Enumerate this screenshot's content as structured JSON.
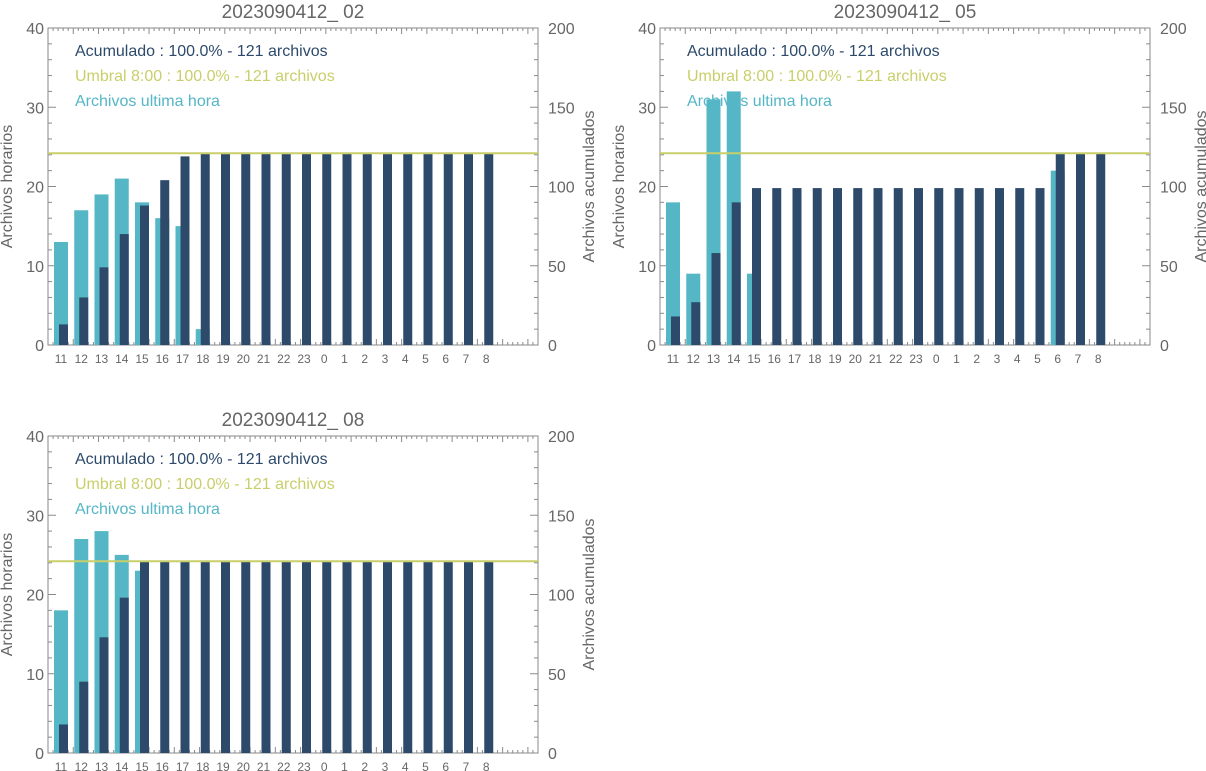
{
  "colors": {
    "hourly": "#55b6c6",
    "cumulative": "#2d4a6b",
    "threshold": "#c8cf6a",
    "axis": "#8a8a8a",
    "text": "#666666"
  },
  "common": {
    "ylabel_left": "Archivos horarios",
    "ylabel_right": "Archivos acumulados",
    "y_left_ticks": [
      "0",
      "10",
      "20",
      "30",
      "40"
    ],
    "y_right_ticks": [
      "0",
      "50",
      "100",
      "150",
      "200"
    ],
    "legend": [
      "Acumulado : 100.0% - 121 archivos",
      "Umbral 8:00 : 100.0% - 121 archivos",
      "Archivos ultima hora"
    ]
  },
  "chart_data": [
    {
      "type": "bar",
      "title": "2023090412_ 02",
      "categories": [
        "11",
        "12",
        "13",
        "14",
        "15",
        "16",
        "17",
        "18",
        "19",
        "20",
        "21",
        "22",
        "23",
        "0",
        "1",
        "2",
        "3",
        "4",
        "5",
        "6",
        "7",
        "8"
      ],
      "ylim_left": [
        0,
        40
      ],
      "ylim_right": [
        0,
        200
      ],
      "threshold_right": 121,
      "series": [
        {
          "name": "Archivos ultima hora",
          "axis": "left",
          "values": [
            13,
            17,
            19,
            21,
            18,
            16,
            15,
            2,
            0,
            0,
            0,
            0,
            0,
            0,
            0,
            0,
            0,
            0,
            0,
            0,
            0,
            0
          ]
        },
        {
          "name": "Acumulado",
          "axis": "right",
          "values": [
            13,
            30,
            49,
            70,
            88,
            104,
            119,
            121,
            121,
            121,
            121,
            121,
            121,
            121,
            121,
            121,
            121,
            121,
            121,
            121,
            121,
            121
          ]
        }
      ]
    },
    {
      "type": "bar",
      "title": "2023090412_ 05",
      "categories": [
        "11",
        "12",
        "13",
        "14",
        "15",
        "16",
        "17",
        "18",
        "19",
        "20",
        "21",
        "22",
        "23",
        "0",
        "1",
        "2",
        "3",
        "4",
        "5",
        "6",
        "7",
        "8"
      ],
      "ylim_left": [
        0,
        40
      ],
      "ylim_right": [
        0,
        200
      ],
      "threshold_right": 121,
      "series": [
        {
          "name": "Archivos ultima hora",
          "axis": "left",
          "values": [
            18,
            9,
            31,
            32,
            9,
            0,
            0,
            0,
            0,
            0,
            0,
            0,
            0,
            0,
            0,
            0,
            0,
            0,
            0,
            22,
            0,
            0
          ]
        },
        {
          "name": "Acumulado",
          "axis": "right",
          "values": [
            18,
            27,
            58,
            90,
            99,
            99,
            99,
            99,
            99,
            99,
            99,
            99,
            99,
            99,
            99,
            99,
            99,
            99,
            99,
            121,
            121,
            121
          ]
        }
      ]
    },
    {
      "type": "bar",
      "title": "2023090412_ 08",
      "categories": [
        "11",
        "12",
        "13",
        "14",
        "15",
        "16",
        "17",
        "18",
        "19",
        "20",
        "21",
        "22",
        "23",
        "0",
        "1",
        "2",
        "3",
        "4",
        "5",
        "6",
        "7",
        "8"
      ],
      "ylim_left": [
        0,
        40
      ],
      "ylim_right": [
        0,
        200
      ],
      "threshold_right": 121,
      "series": [
        {
          "name": "Archivos ultima hora",
          "axis": "left",
          "values": [
            18,
            27,
            28,
            25,
            23,
            0,
            0,
            0,
            0,
            0,
            0,
            0,
            0,
            0,
            0,
            0,
            0,
            0,
            0,
            0,
            0,
            0
          ]
        },
        {
          "name": "Acumulado",
          "axis": "right",
          "values": [
            18,
            45,
            73,
            98,
            121,
            121,
            121,
            121,
            121,
            121,
            121,
            121,
            121,
            121,
            121,
            121,
            121,
            121,
            121,
            121,
            121,
            121
          ]
        }
      ]
    }
  ]
}
